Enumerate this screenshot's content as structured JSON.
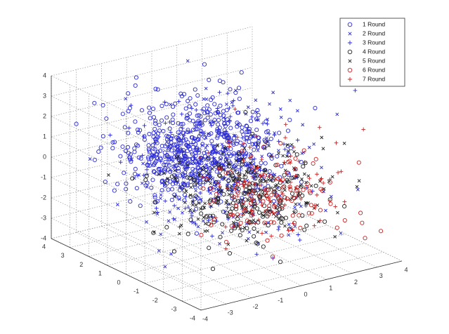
{
  "chart_data": {
    "type": "scatter",
    "dimensions": 3,
    "title": "",
    "xlabel": "",
    "ylabel": "",
    "zlabel": "",
    "xlim": [
      -4,
      4
    ],
    "ylim": [
      -4,
      4
    ],
    "zlim": [
      -4,
      4
    ],
    "x_ticks": [
      -4,
      -3,
      -2,
      -1,
      0,
      1,
      2,
      3,
      4
    ],
    "y_ticks": [
      -4,
      -3,
      -2,
      -1,
      0,
      1,
      2,
      3,
      4
    ],
    "z_ticks": [
      -4,
      -3,
      -2,
      -1,
      0,
      1,
      2,
      3,
      4
    ],
    "grid": true,
    "grid_style": "dotted",
    "legend_position": "top-right",
    "series": [
      {
        "name": "1 Round",
        "marker": "circle",
        "color": "#2b2bd6",
        "count": 620,
        "center": [
          -0.8,
          0.4,
          1.0
        ],
        "spread": [
          1.3,
          1.2,
          1.2
        ]
      },
      {
        "name": "2 Round",
        "marker": "x",
        "color": "#2b2bd6",
        "count": 220,
        "center": [
          0.0,
          0.0,
          0.0
        ],
        "spread": [
          1.6,
          1.5,
          1.6
        ]
      },
      {
        "name": "3 Round",
        "marker": "plus",
        "color": "#2b2bd6",
        "count": 150,
        "center": [
          -0.4,
          0.2,
          0.3
        ],
        "spread": [
          1.5,
          1.4,
          1.6
        ]
      },
      {
        "name": "4 Round",
        "marker": "circle",
        "color": "#222222",
        "count": 180,
        "center": [
          0.6,
          -0.4,
          -1.5
        ],
        "spread": [
          1.3,
          1.2,
          0.9
        ]
      },
      {
        "name": "5 Round",
        "marker": "x",
        "color": "#222222",
        "count": 200,
        "center": [
          0.5,
          -0.2,
          -1.2
        ],
        "spread": [
          1.5,
          1.3,
          1.0
        ]
      },
      {
        "name": "6 Round",
        "marker": "circle",
        "color": "#cc2222",
        "count": 110,
        "center": [
          1.2,
          -0.8,
          -1.4
        ],
        "spread": [
          1.2,
          1.1,
          0.9
        ]
      },
      {
        "name": "7 Round",
        "marker": "plus",
        "color": "#cc2222",
        "count": 110,
        "center": [
          1.5,
          -0.5,
          -1.0
        ],
        "spread": [
          1.2,
          1.1,
          1.0
        ]
      }
    ]
  }
}
